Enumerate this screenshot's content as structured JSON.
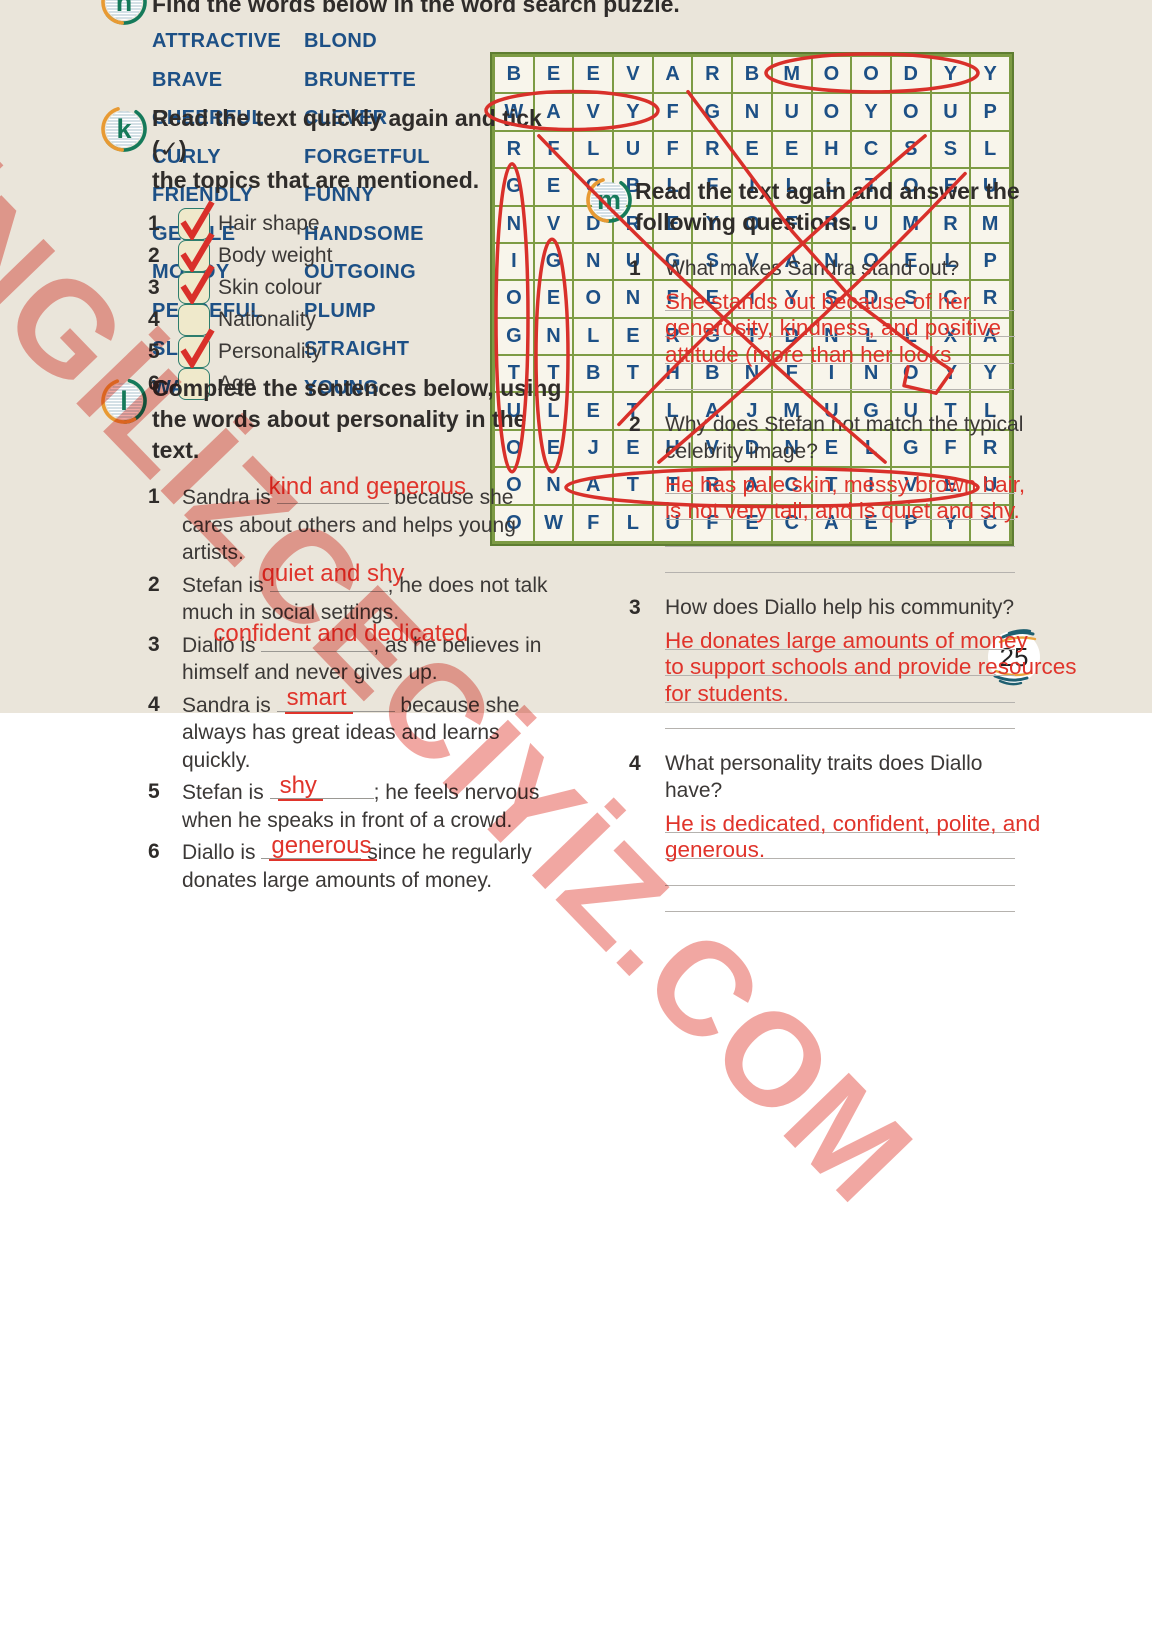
{
  "page": {
    "number": "25"
  },
  "watermark": {
    "text": "İNGİLİZCECİYİZ.COM",
    "color": "#f0a09a"
  },
  "exercise_k": {
    "icon_letter": "k",
    "title_line1": "Read the text quickly again and tick (✓)",
    "title_line2": "the topics that are mentioned.",
    "items": [
      {
        "num": "1",
        "label": "Hair shape",
        "checked": true
      },
      {
        "num": "2",
        "label": "Body weight",
        "checked": true
      },
      {
        "num": "3",
        "label": "Skin colour",
        "checked": true
      },
      {
        "num": "4",
        "label": "Nationality",
        "checked": false
      },
      {
        "num": "5",
        "label": "Personality",
        "checked": true
      },
      {
        "num": "6",
        "label": "Age",
        "checked": false
      }
    ]
  },
  "exercise_l": {
    "icon_letter": "l",
    "title_line1": "Complete the sentences below, using",
    "title_line2": "the words about personality in the",
    "title_line3": "text.",
    "items": [
      {
        "num": "1",
        "pre": "Sandra is ",
        "answer": "kind and generous",
        "answer_pos": "above",
        "post": " because she",
        "lines": [
          "cares about others and helps young",
          "artists."
        ]
      },
      {
        "num": "2",
        "pre": "Stefan is ",
        "answer": "quiet and shy",
        "answer_pos": "above",
        "post": "; he does not talk",
        "lines": [
          "much in social settings."
        ]
      },
      {
        "num": "3",
        "pre": "Diallo is ",
        "answer": "confident and dedicated",
        "answer_pos": "above",
        "post": ", as he believes in",
        "lines": [
          "himself and never gives up."
        ]
      },
      {
        "num": "4",
        "pre": "Sandra is ",
        "answer": "smart",
        "answer_pos": "on",
        "post": " because she",
        "lines": [
          "always has great ideas and learns",
          "quickly."
        ]
      },
      {
        "num": "5",
        "pre": "Stefan is ",
        "answer": "shy",
        "answer_pos": "on",
        "post": "; he feels nervous",
        "lines": [
          "when he speaks in front of a crowd."
        ]
      },
      {
        "num": "6",
        "pre": "Diallo is ",
        "answer": "generous",
        "answer_pos": "on",
        "post": " since he regularly",
        "lines": [
          "donates large amounts of money."
        ]
      }
    ]
  },
  "exercise_m": {
    "icon_letter": "m",
    "title_line1": "Read the text again and answer the",
    "title_line2": "following questions.",
    "questions": [
      {
        "num": "1",
        "lines": [
          "What makes Sandra stand out?"
        ],
        "answers": [
          "She stands out because of her",
          "generosity, kindness, and positive",
          "attitude (more than her looks"
        ],
        "empty_lines": 1
      },
      {
        "num": "2",
        "lines": [
          "Why does Stefan not match the typical",
          "celebrity image?"
        ],
        "answers": [
          "He has pale skin, messy brown hair,",
          "is not very tall, and is quiet and shy."
        ],
        "empty_lines": 2
      },
      {
        "num": "3",
        "lines": [
          "How does Diallo help his community?"
        ],
        "answers": [
          "He donates large amounts of money",
          "to support schools and provide resources",
          "for students."
        ],
        "empty_lines": 1
      },
      {
        "num": "4",
        "lines": [
          "What personality traits does Diallo",
          "have?"
        ],
        "answers": [
          "He is dedicated, confident, polite, and",
          "generous."
        ],
        "empty_lines": 2
      }
    ]
  },
  "exercise_n": {
    "icon_letter": "n",
    "title": "Find the words below in the word search puzzle.",
    "words_col1": [
      "ATTRACTIVE",
      "BRAVE",
      "CHEERFUL",
      "CURLY",
      "FRIENDLY",
      "GENTLE",
      "MOODY",
      "PEACEFUL",
      "SLIM",
      "WAVY"
    ],
    "words_col2": [
      "BLOND",
      "BRUNETTE",
      "CLEVER",
      "FORGETFUL",
      "FUNNY",
      "HANDSOME",
      "OUTGOING",
      "PLUMP",
      "STRAIGHT",
      "YOUNG"
    ],
    "grid_rows": [
      "BEEVARBMOODYY",
      "WAVYFGNUOYOUP",
      "RFLUFREEHCSSL",
      "GEOBLFILLTOEU",
      "NVDREYOFRUMRM",
      "IGNUGSVANOELP",
      "OEONFEIYSDSCR",
      "GNLERGTDNLLXA",
      "TTBTHBNFINOYY",
      "ULETLAJMUGUTL",
      "OEJEHVDNELGFR",
      "ONATTRACTIVEU",
      "OWFLUFECAEPYC"
    ],
    "stroke_color": "#d9302a",
    "annotations": [
      {
        "word": "MOODY",
        "shape": "ellipse-h",
        "row": 1,
        "col_start": 8,
        "col_end": 12
      },
      {
        "word": "WAVY",
        "shape": "ellipse-h",
        "row": 2,
        "col_start": 1,
        "col_end": 4
      },
      {
        "word": "OUTGOING",
        "shape": "ellipse-v",
        "col": 1,
        "row_start": 4,
        "row_end": 11
      },
      {
        "word": "GENTLE",
        "shape": "ellipse-v",
        "col": 2,
        "row_start": 6,
        "row_end": 11
      },
      {
        "word": "ATTRACTIVE",
        "shape": "ellipse-h",
        "row": 12,
        "col_start": 3,
        "col_end": 12
      },
      {
        "word": "FORGETFUL",
        "shape": "line",
        "from_cell": [
          3,
          2
        ],
        "to_cell": [
          11,
          10
        ]
      },
      {
        "word": "STRAIGHT",
        "shape": "line",
        "from_cell": [
          3,
          11
        ],
        "to_cell": [
          10,
          4
        ]
      },
      {
        "word": "HANDSOME",
        "shape": "line",
        "from_cell": [
          11,
          5
        ],
        "to_cell": [
          4,
          12
        ]
      },
      {
        "word": "",
        "shape": "scribble",
        "cells": [
          [
            1.5,
            5.4
          ],
          [
            3.2,
            6.6
          ],
          [
            5.2,
            8.0
          ],
          [
            7.0,
            9.5
          ],
          [
            8.2,
            11.0
          ],
          [
            8.9,
            12.0
          ],
          [
            9.5,
            11.6
          ],
          [
            9.3,
            10.8
          ],
          [
            8.8,
            10.9
          ]
        ]
      }
    ]
  }
}
